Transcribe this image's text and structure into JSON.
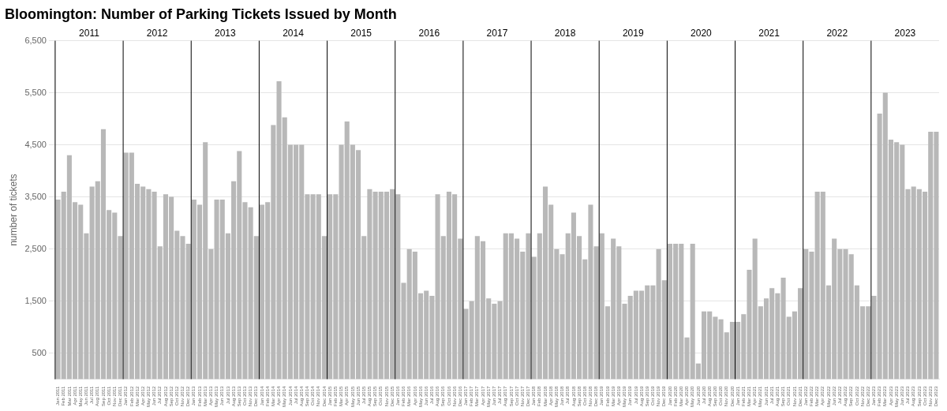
{
  "chart_data": {
    "type": "bar",
    "title": "Bloomington: Number of Parking Tickets Issued by Month",
    "y_label": "number of tickets",
    "color": "#b8b8b8",
    "grid": "y",
    "ylim": [
      0,
      6500
    ],
    "yticks": [
      500,
      {
        "value": 1500,
        "label": "1,500"
      },
      {
        "value": 2500,
        "label": "2,500"
      },
      {
        "value": 3500,
        "label": "3,500"
      },
      {
        "value": 4500,
        "label": "4,500"
      },
      {
        "value": 5500,
        "label": "5,500"
      },
      {
        "value": 6500,
        "label": "6,500"
      }
    ],
    "categories": [
      "Jan 2011",
      "Feb 2011",
      "Mar 2011",
      "Apr 2011",
      "May 2011",
      "Jun 2011",
      "Jul 2011",
      "Aug 2011",
      "Sep 2011",
      "Oct 2011",
      "Nov 2011",
      "Dec 2011",
      "Jan 2012",
      "Feb 2012",
      "Mar 2012",
      "Apr 2012",
      "May 2012",
      "Jun 2012",
      "Jul 2012",
      "Aug 2012",
      "Sep 2012",
      "Oct 2012",
      "Nov 2012",
      "Dec 2012",
      "Jan 2013",
      "Feb 2013",
      "Mar 2013",
      "Apr 2013",
      "May 2013",
      "Jun 2013",
      "Jul 2013",
      "Aug 2013",
      "Sep 2013",
      "Oct 2013",
      "Nov 2013",
      "Dec 2013",
      "Jan 2014",
      "Feb 2014",
      "Mar 2014",
      "Apr 2014",
      "May 2014",
      "Jun 2014",
      "Jul 2014",
      "Aug 2014",
      "Sep 2014",
      "Oct 2014",
      "Nov 2014",
      "Dec 2014",
      "Jan 2015",
      "Feb 2015",
      "Mar 2015",
      "Apr 2015",
      "May 2015",
      "Jun 2015",
      "Jul 2015",
      "Aug 2015",
      "Sep 2015",
      "Oct 2015",
      "Nov 2015",
      "Dec 2015",
      "Jan 2016",
      "Feb 2016",
      "Mar 2016",
      "Apr 2016",
      "May 2016",
      "Jun 2016",
      "Jul 2016",
      "Aug 2016",
      "Sep 2016",
      "Oct 2016",
      "Nov 2016",
      "Dec 2016",
      "Jan 2017",
      "Feb 2017",
      "Mar 2017",
      "Apr 2017",
      "May 2017",
      "Jun 2017",
      "Jul 2017",
      "Aug 2017",
      "Sep 2017",
      "Oct 2017",
      "Nov 2017",
      "Dec 2017",
      "Jan 2018",
      "Feb 2018",
      "Mar 2018",
      "Apr 2018",
      "May 2018",
      "Jun 2018",
      "Jul 2018",
      "Aug 2018",
      "Sep 2018",
      "Oct 2018",
      "Nov 2018",
      "Dec 2018",
      "Jan 2019",
      "Feb 2019",
      "Mar 2019",
      "Apr 2019",
      "May 2019",
      "Jun 2019",
      "Jul 2019",
      "Aug 2019",
      "Sep 2019",
      "Oct 2019",
      "Nov 2019",
      "Dec 2019",
      "Jan 2020",
      "Feb 2020",
      "Mar 2020",
      "Apr 2020",
      "May 2020",
      "Jun 2020",
      "Jul 2020",
      "Aug 2020",
      "Sep 2020",
      "Oct 2020",
      "Nov 2020",
      "Dec 2020",
      "Jan 2021",
      "Feb 2021",
      "Mar 2021",
      "Apr 2021",
      "May 2021",
      "Jun 2021",
      "Jul 2021",
      "Aug 2021",
      "Sep 2021",
      "Oct 2021",
      "Nov 2021",
      "Dec 2021",
      "Jan 2022",
      "Feb 2022",
      "Mar 2022",
      "Apr 2022",
      "May 2022",
      "Jun 2022",
      "Jul 2022",
      "Aug 2022",
      "Sep 2022",
      "Oct 2022",
      "Nov 2022",
      "Dec 2022",
      "Jan 2023",
      "Feb 2023",
      "Mar 2023",
      "Apr 2023",
      "May 2023",
      "Jun 2023",
      "Jul 2023",
      "Aug 2023",
      "Sep 2023",
      "Oct 2023",
      "Nov 2023",
      "Dec 2023"
    ],
    "values": [
      3450,
      3600,
      4300,
      3400,
      3350,
      2800,
      3700,
      3800,
      4800,
      3250,
      3200,
      2750,
      4350,
      4350,
      3750,
      3700,
      3650,
      3600,
      2550,
      3550,
      3500,
      2850,
      2750,
      2600,
      3450,
      3350,
      4550,
      2500,
      3450,
      3450,
      2800,
      3800,
      4380,
      3400,
      3300,
      2750,
      3350,
      3400,
      4880,
      5720,
      5030,
      4500,
      4500,
      4500,
      3550,
      3550,
      3550,
      2750,
      3550,
      3550,
      4500,
      4950,
      4500,
      4400,
      2750,
      3650,
      3600,
      3600,
      3600,
      3650,
      3550,
      1850,
      2500,
      2450,
      1650,
      1700,
      1600,
      3550,
      2750,
      3600,
      3550,
      2700,
      1350,
      1500,
      2750,
      2650,
      1550,
      1450,
      1500,
      2800,
      2800,
      2700,
      2450,
      2800,
      2350,
      2800,
      3700,
      3350,
      2500,
      2400,
      2800,
      3200,
      2750,
      2300,
      3350,
      2550,
      2800,
      1400,
      2700,
      2550,
      1450,
      1600,
      1700,
      1700,
      1800,
      1800,
      2500,
      1900,
      2600,
      2600,
      2600,
      800,
      2600,
      300,
      1300,
      1300,
      1200,
      1150,
      900,
      1100,
      1100,
      1250,
      2100,
      2700,
      1400,
      1550,
      1750,
      1650,
      1950,
      1200,
      1300,
      1750,
      2500,
      2450,
      3600,
      3600,
      1800,
      2700,
      2500,
      2500,
      2400,
      1800,
      1400,
      1400,
      1600,
      5100,
      5500,
      4600,
      4550,
      4500,
      3650,
      3700,
      3650,
      3600,
      4750,
      4750
    ],
    "annotations": [
      {
        "text": "2011",
        "from": "Jan 2011",
        "to": "Dec 2011"
      },
      {
        "text": "2012",
        "from": "Jan 2012",
        "to": "Dec 2012"
      },
      {
        "text": "2013",
        "from": "Jan 2013",
        "to": "Dec 2013"
      },
      {
        "text": "2014",
        "from": "Jan 2014",
        "to": "Dec 2014"
      },
      {
        "text": "2015",
        "from": "Jan 2015",
        "to": "Dec 2015"
      },
      {
        "text": "2016",
        "from": "Jan 2016",
        "to": "Dec 2016"
      },
      {
        "text": "2017",
        "from": "Jan 2017",
        "to": "Dec 2017"
      },
      {
        "text": "2018",
        "from": "Jan 2018",
        "to": "Dec 2018"
      },
      {
        "text": "2019",
        "from": "Jan 2019",
        "to": "Dec 2019"
      },
      {
        "text": "2020",
        "from": "Jan 2020",
        "to": "Dec 2020"
      },
      {
        "text": "2021",
        "from": "Jan 2021",
        "to": "Dec 2021"
      },
      {
        "text": "2022",
        "from": "Jan 2022",
        "to": "Dec 2022"
      },
      {
        "text": "2023",
        "from": "Jan 2023",
        "to": "Dec 2023"
      }
    ]
  }
}
